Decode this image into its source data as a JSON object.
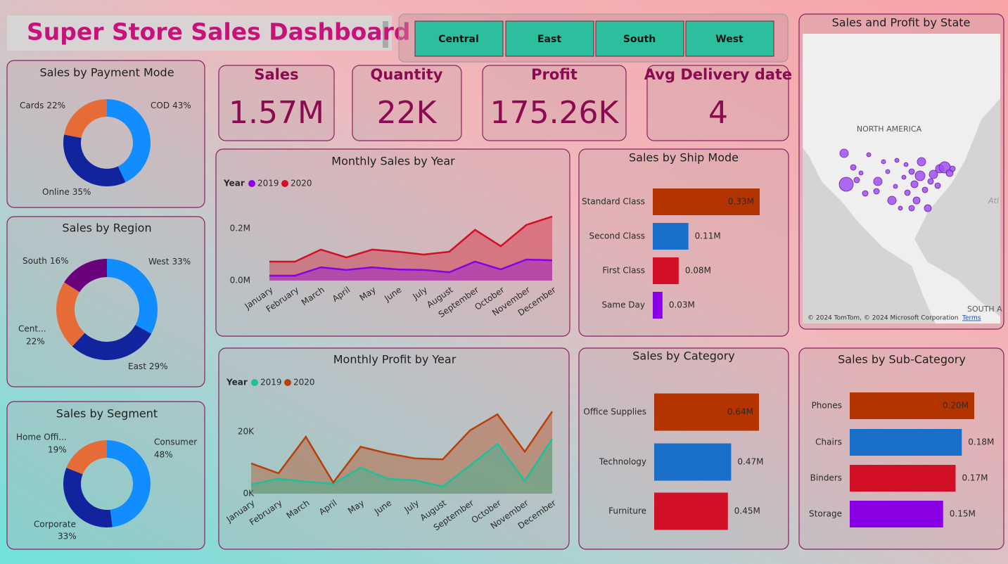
{
  "header": {
    "title": "Super Store Sales Dashboard"
  },
  "slicer": {
    "items": [
      "Central",
      "East",
      "South",
      "West"
    ]
  },
  "kpis": [
    {
      "label": "Sales",
      "value": "1.57M"
    },
    {
      "label": "Quantity",
      "value": "22K"
    },
    {
      "label": "Profit",
      "value": "175.26K"
    },
    {
      "label": "Avg Delivery date",
      "value": "4"
    }
  ],
  "map": {
    "title": "Sales and Profit by State",
    "labels": [
      "NORTH AMERICA",
      "SOUTH A",
      "Atl"
    ],
    "attribution": "© 2024 TomTom, © 2024 Microsoft Corporation",
    "terms": "Terms"
  },
  "chart_data": [
    {
      "type": "donut",
      "title": "Sales by Payment Mode",
      "categories": [
        "COD",
        "Online",
        "Cards"
      ],
      "values": [
        43,
        35,
        22
      ],
      "value_labels": [
        "43%",
        "35%",
        "22%"
      ],
      "colors": [
        "#118dff",
        "#12239e",
        "#e66c37"
      ]
    },
    {
      "type": "donut",
      "title": "Sales by Region",
      "categories": [
        "West",
        "East",
        "Cent...",
        "South"
      ],
      "values": [
        33,
        29,
        22,
        16
      ],
      "value_labels": [
        "33%",
        "29%",
        "22%",
        "16%"
      ],
      "colors": [
        "#118dff",
        "#12239e",
        "#e66c37",
        "#6b007b"
      ]
    },
    {
      "type": "donut",
      "title": "Sales by Segment",
      "categories": [
        "Consumer",
        "Corporate",
        "Home Offi..."
      ],
      "values": [
        48,
        33,
        19
      ],
      "value_labels": [
        "48%",
        "33%",
        "19%"
      ],
      "colors": [
        "#118dff",
        "#12239e",
        "#e66c37"
      ]
    },
    {
      "type": "line",
      "title": "Monthly Sales by Year",
      "legend_title": "Year",
      "categories": [
        "January",
        "February",
        "March",
        "April",
        "May",
        "June",
        "July",
        "August",
        "September",
        "October",
        "November",
        "December"
      ],
      "series": [
        {
          "name": "2019",
          "color": "#8a00e6",
          "values": [
            0.019,
            0.019,
            0.051,
            0.041,
            0.051,
            0.043,
            0.041,
            0.032,
            0.073,
            0.043,
            0.081,
            0.078
          ]
        },
        {
          "name": "2020",
          "color": "#d10f25",
          "values": [
            0.073,
            0.073,
            0.119,
            0.089,
            0.119,
            0.111,
            0.1,
            0.111,
            0.195,
            0.132,
            0.214,
            0.246
          ]
        }
      ],
      "ylim": [
        0,
        0.27
      ],
      "yticks": [
        {
          "value": 0,
          "label": "0.0M"
        },
        {
          "value": 0.2,
          "label": "0.2M"
        }
      ]
    },
    {
      "type": "bar",
      "orientation": "horizontal",
      "title": "Sales by Ship Mode",
      "categories": [
        "Standard Class",
        "Second Class",
        "First Class",
        "Same Day"
      ],
      "values": [
        0.33,
        0.11,
        0.08,
        0.03
      ],
      "value_labels": [
        "0.33M",
        "0.11M",
        "0.08M",
        "0.03M"
      ],
      "colors": [
        "#b33400",
        "#1a6fc9",
        "#d10f25",
        "#8a00e6"
      ]
    },
    {
      "type": "line",
      "title": "Monthly Profit by Year",
      "legend_title": "Year",
      "categories": [
        "January",
        "February",
        "March",
        "April",
        "May",
        "June",
        "July",
        "August",
        "September",
        "October",
        "November",
        "December"
      ],
      "series": [
        {
          "name": "2019",
          "color": "#1fbf9a",
          "values": [
            3.0,
            4.8,
            3.9,
            3.2,
            8.4,
            4.8,
            4.3,
            2.3,
            9.1,
            16.1,
            4.1,
            17.7
          ]
        },
        {
          "name": "2020",
          "color": "#b8400a",
          "values": [
            9.8,
            6.6,
            18.4,
            3.6,
            15.2,
            13.0,
            11.4,
            11.1,
            20.5,
            25.7,
            13.6,
            26.6
          ]
        }
      ],
      "ylim": [
        0,
        28
      ],
      "yticks": [
        {
          "value": 0,
          "label": "0K"
        },
        {
          "value": 20,
          "label": "20K"
        }
      ]
    },
    {
      "type": "bar",
      "orientation": "horizontal",
      "title": "Sales by Category",
      "categories": [
        "Office Supplies",
        "Technology",
        "Furniture"
      ],
      "values": [
        0.64,
        0.47,
        0.45
      ],
      "value_labels": [
        "0.64M",
        "0.47M",
        "0.45M"
      ],
      "colors": [
        "#b33400",
        "#1a6fc9",
        "#d10f25"
      ]
    },
    {
      "type": "bar",
      "orientation": "horizontal",
      "title": "Sales by Sub-Category",
      "categories": [
        "Phones",
        "Chairs",
        "Binders",
        "Storage"
      ],
      "values": [
        0.2,
        0.18,
        0.17,
        0.15
      ],
      "value_labels": [
        "0.20M",
        "0.18M",
        "0.17M",
        "0.15M"
      ],
      "colors": [
        "#b33400",
        "#1a6fc9",
        "#d10f25",
        "#8a00e6"
      ]
    }
  ]
}
